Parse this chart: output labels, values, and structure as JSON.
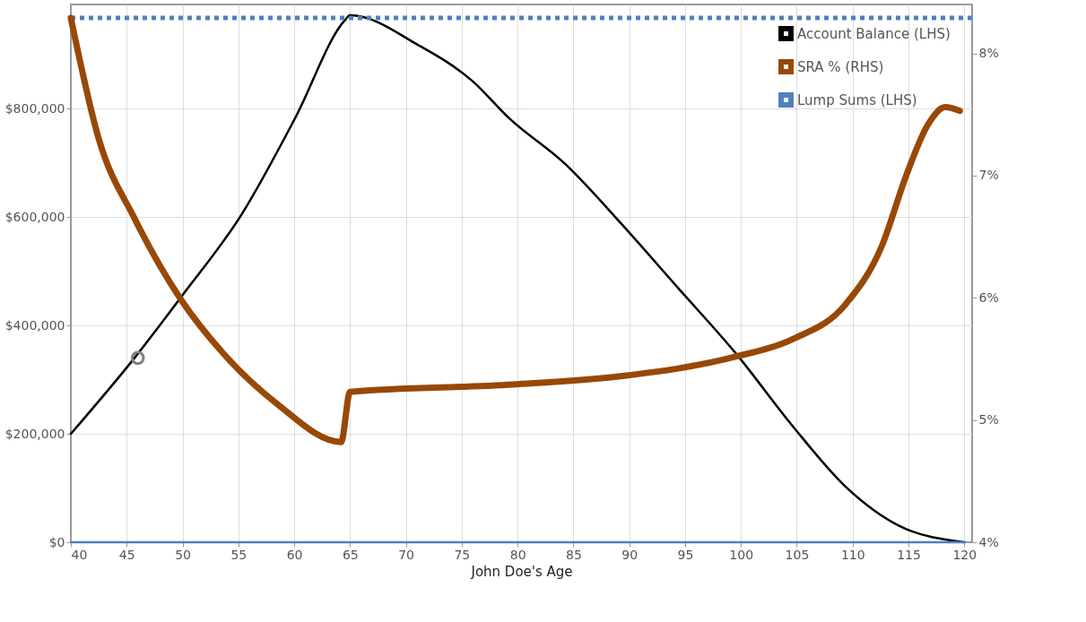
{
  "chart_data": {
    "type": "line",
    "xlabel": "John Doe's Age",
    "xlim": [
      40,
      120.7
    ],
    "xticks": [
      40,
      45,
      50,
      55,
      60,
      65,
      70,
      75,
      80,
      85,
      90,
      95,
      100,
      105,
      110,
      115,
      120
    ],
    "ylim": [
      0,
      992000
    ],
    "yticks": [
      {
        "value": 0,
        "label": "$0"
      },
      {
        "value": 200000,
        "label": "$200,000"
      },
      {
        "value": 400000,
        "label": "$400,000"
      },
      {
        "value": 600000,
        "label": "$600,000"
      },
      {
        "value": 800000,
        "label": "$800,000"
      }
    ],
    "y2lim": [
      4,
      8.4
    ],
    "y2ticks": [
      {
        "value": 4,
        "label": "4%"
      },
      {
        "value": 5,
        "label": "5%"
      },
      {
        "value": 6,
        "label": "6%"
      },
      {
        "value": 7,
        "label": "7%"
      },
      {
        "value": 8,
        "label": "8%"
      }
    ],
    "grid": true,
    "legend": "top right",
    "marker": "none",
    "series": [
      {
        "name": "Account Balance (LHS)",
        "color": "#000000",
        "x": [
          40,
          45.7,
          49.9,
          55.3,
          60.1,
          64.5,
          65,
          71.2,
          76,
          79.2,
          84.3,
          89.4,
          94.5,
          99.6,
          104.6,
          109.4,
          114.2,
          120
        ],
        "values": [
          200000,
          340000,
          453000,
          605000,
          783000,
          962000,
          972000,
          916000,
          850000,
          783000,
          697000,
          585000,
          466000,
          347000,
          215000,
          102000,
          30000,
          0
        ]
      },
      {
        "name": "SRA % (RHS)",
        "color": "#984807",
        "axis": "y2",
        "x": [
          40,
          42.5,
          45.7,
          49.9,
          53.7,
          58.5,
          64.2,
          65,
          79.6,
          89.4,
          99.6,
          104.6,
          109.4,
          112.6,
          114.8,
          116.7,
          118.3,
          119.6
        ],
        "values": [
          8.29,
          7.3,
          6.65,
          5.98,
          5.54,
          5.13,
          4.82,
          5.23,
          5.29,
          5.36,
          5.52,
          5.66,
          5.95,
          6.42,
          7.0,
          7.41,
          7.56,
          7.53
        ]
      },
      {
        "name": "Lump Sums (LHS)",
        "color": "#4f81bd",
        "x": [
          40,
          120
        ],
        "values": [
          0,
          0
        ]
      },
      {
        "type": "scatter",
        "color": "#808080",
        "marker": "circle",
        "x": [
          46
        ],
        "values": [
          340000
        ]
      }
    ],
    "ref_lines": [
      {
        "axis": "y",
        "value": 967000,
        "color": "#4f81bd",
        "line_style": "dotted"
      }
    ]
  }
}
